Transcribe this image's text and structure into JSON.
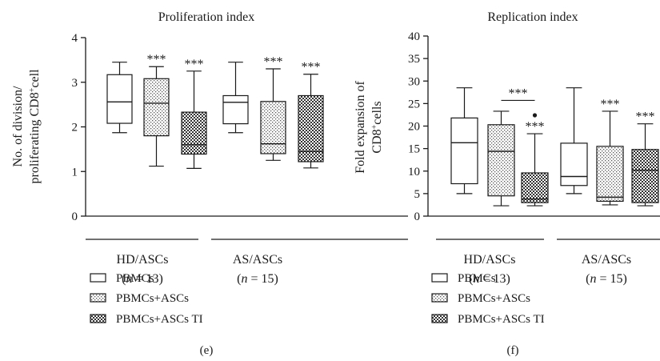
{
  "legend": {
    "items": [
      {
        "label": "PBMCs",
        "pattern": "plain"
      },
      {
        "label": "PBMCs+ASCs",
        "pattern": "dots"
      },
      {
        "label": "PBMCs+ASCs TI",
        "pattern": "check"
      }
    ]
  },
  "chart_data": [
    {
      "type": "box",
      "panel": "(e)",
      "title": "Proliferation index",
      "ylabel_line1": "No. of division/",
      "ylabel_line2": "proliferating CD8",
      "ylabel_sup": "+",
      "ylabel_tail": "cell",
      "ylim": [
        0,
        4
      ],
      "yticks": [
        0,
        1,
        2,
        3,
        4
      ],
      "groups": [
        {
          "name": "HD/ASCs",
          "n_label": "(n = 13)"
        },
        {
          "name": "AS/ASCs",
          "n_label": "(n = 15)"
        }
      ],
      "boxes": [
        {
          "group": "HD/ASCs",
          "series": "PBMCs",
          "min": 1.87,
          "q1": 2.08,
          "median": 2.56,
          "q3": 3.17,
          "max": 3.45,
          "stars": ""
        },
        {
          "group": "HD/ASCs",
          "series": "PBMCs+ASCs",
          "min": 1.12,
          "q1": 1.8,
          "median": 2.53,
          "q3": 3.08,
          "max": 3.35,
          "stars": "***"
        },
        {
          "group": "HD/ASCs",
          "series": "PBMCs+ASCs TI",
          "min": 1.07,
          "q1": 1.39,
          "median": 1.6,
          "q3": 2.33,
          "max": 3.25,
          "stars": "***"
        },
        {
          "group": "AS/ASCs",
          "series": "PBMCs",
          "min": 1.87,
          "q1": 2.07,
          "median": 2.55,
          "q3": 2.7,
          "max": 3.45,
          "stars": ""
        },
        {
          "group": "AS/ASCs",
          "series": "PBMCs+ASCs",
          "min": 1.25,
          "q1": 1.4,
          "median": 1.62,
          "q3": 2.57,
          "max": 3.3,
          "stars": "***"
        },
        {
          "group": "AS/ASCs",
          "series": "PBMCs+ASCs TI",
          "min": 1.08,
          "q1": 1.22,
          "median": 1.45,
          "q3": 2.7,
          "max": 3.18,
          "stars": "***"
        }
      ],
      "brackets": [],
      "outliers": []
    },
    {
      "type": "box",
      "panel": "(f)",
      "title": "Replication index",
      "ylabel_line1": "Fold expansion of",
      "ylabel_line2": "CD8",
      "ylabel_sup": "+",
      "ylabel_tail": "cells",
      "ylim": [
        0,
        40
      ],
      "yticks": [
        0,
        5,
        10,
        15,
        20,
        25,
        30,
        35,
        40
      ],
      "groups": [
        {
          "name": "HD/ASCs",
          "n_label": "(n = 13)"
        },
        {
          "name": "AS/ASCs",
          "n_label": "(n = 15)"
        }
      ],
      "boxes": [
        {
          "group": "HD/ASCs",
          "series": "PBMCs",
          "min": 5.0,
          "q1": 7.2,
          "median": 16.3,
          "q3": 21.8,
          "max": 28.5,
          "stars": ""
        },
        {
          "group": "HD/ASCs",
          "series": "PBMCs+ASCs",
          "min": 2.3,
          "q1": 4.5,
          "median": 14.4,
          "q3": 20.3,
          "max": 23.3,
          "stars": ""
        },
        {
          "group": "HD/ASCs",
          "series": "PBMCs+ASCs TI",
          "min": 2.3,
          "q1": 3.0,
          "median": 3.8,
          "q3": 9.6,
          "max": 18.3,
          "stars": "***"
        },
        {
          "group": "AS/ASCs",
          "series": "PBMCs",
          "min": 5.0,
          "q1": 6.8,
          "median": 8.8,
          "q3": 16.2,
          "max": 28.5,
          "stars": ""
        },
        {
          "group": "AS/ASCs",
          "series": "PBMCs+ASCs",
          "min": 2.5,
          "q1": 3.3,
          "median": 4.2,
          "q3": 15.5,
          "max": 23.3,
          "stars": "***"
        },
        {
          "group": "AS/ASCs",
          "series": "PBMCs+ASCs TI",
          "min": 2.3,
          "q1": 3.0,
          "median": 10.2,
          "q3": 14.8,
          "max": 20.5,
          "stars": "***"
        }
      ],
      "brackets": [
        {
          "from_box": 1,
          "to_box": 2,
          "y": 25.7,
          "label": "***"
        }
      ],
      "outliers": [
        {
          "box": 2,
          "y": 22.4
        }
      ]
    }
  ]
}
